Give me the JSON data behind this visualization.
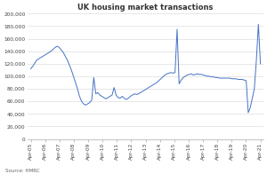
{
  "title": "UK housing market transactions",
  "source": "Source: HMRC",
  "line_color": "#4472C4",
  "ylim": [
    0,
    200000
  ],
  "yticks": [
    0,
    20000,
    40000,
    60000,
    80000,
    100000,
    120000,
    140000,
    160000,
    180000,
    200000
  ],
  "xtick_labels": [
    "Apr-05",
    "Apr-06",
    "Apr-07",
    "Apr-08",
    "Apr-09",
    "Apr-10",
    "Apr-11",
    "Apr-12",
    "Apr-13",
    "Apr-14",
    "Apr-15",
    "Apr-16",
    "Apr-17",
    "Apr-18",
    "Apr-19",
    "Apr-20",
    "Apr-21"
  ],
  "series": [
    112000,
    116000,
    121000,
    126000,
    128000,
    130000,
    132000,
    134000,
    136000,
    138000,
    140000,
    143000,
    146000,
    148000,
    146000,
    142000,
    138000,
    132000,
    126000,
    118000,
    110000,
    100000,
    90000,
    80000,
    68000,
    60000,
    56000,
    54000,
    56000,
    58000,
    62000,
    98000,
    72000,
    74000,
    70000,
    68000,
    66000,
    64000,
    66000,
    68000,
    70000,
    82000,
    70000,
    66000,
    65000,
    68000,
    65000,
    63000,
    65000,
    68000,
    70000,
    72000,
    71000,
    72000,
    74000,
    76000,
    78000,
    80000,
    82000,
    84000,
    86000,
    88000,
    90000,
    93000,
    96000,
    99000,
    102000,
    104000,
    105000,
    106000,
    105000,
    106000,
    175000,
    88000,
    94000,
    98000,
    100000,
    102000,
    103000,
    104000,
    102000,
    103000,
    104000,
    103000,
    103000,
    102000,
    101000,
    100000,
    100000,
    99000,
    99000,
    98000,
    98000,
    97000,
    97000,
    97000,
    97000,
    97000,
    97000,
    96000,
    96000,
    96000,
    95000,
    95000,
    95000,
    94000,
    93000,
    42000,
    50000,
    65000,
    80000,
    125000,
    183000,
    120000
  ]
}
